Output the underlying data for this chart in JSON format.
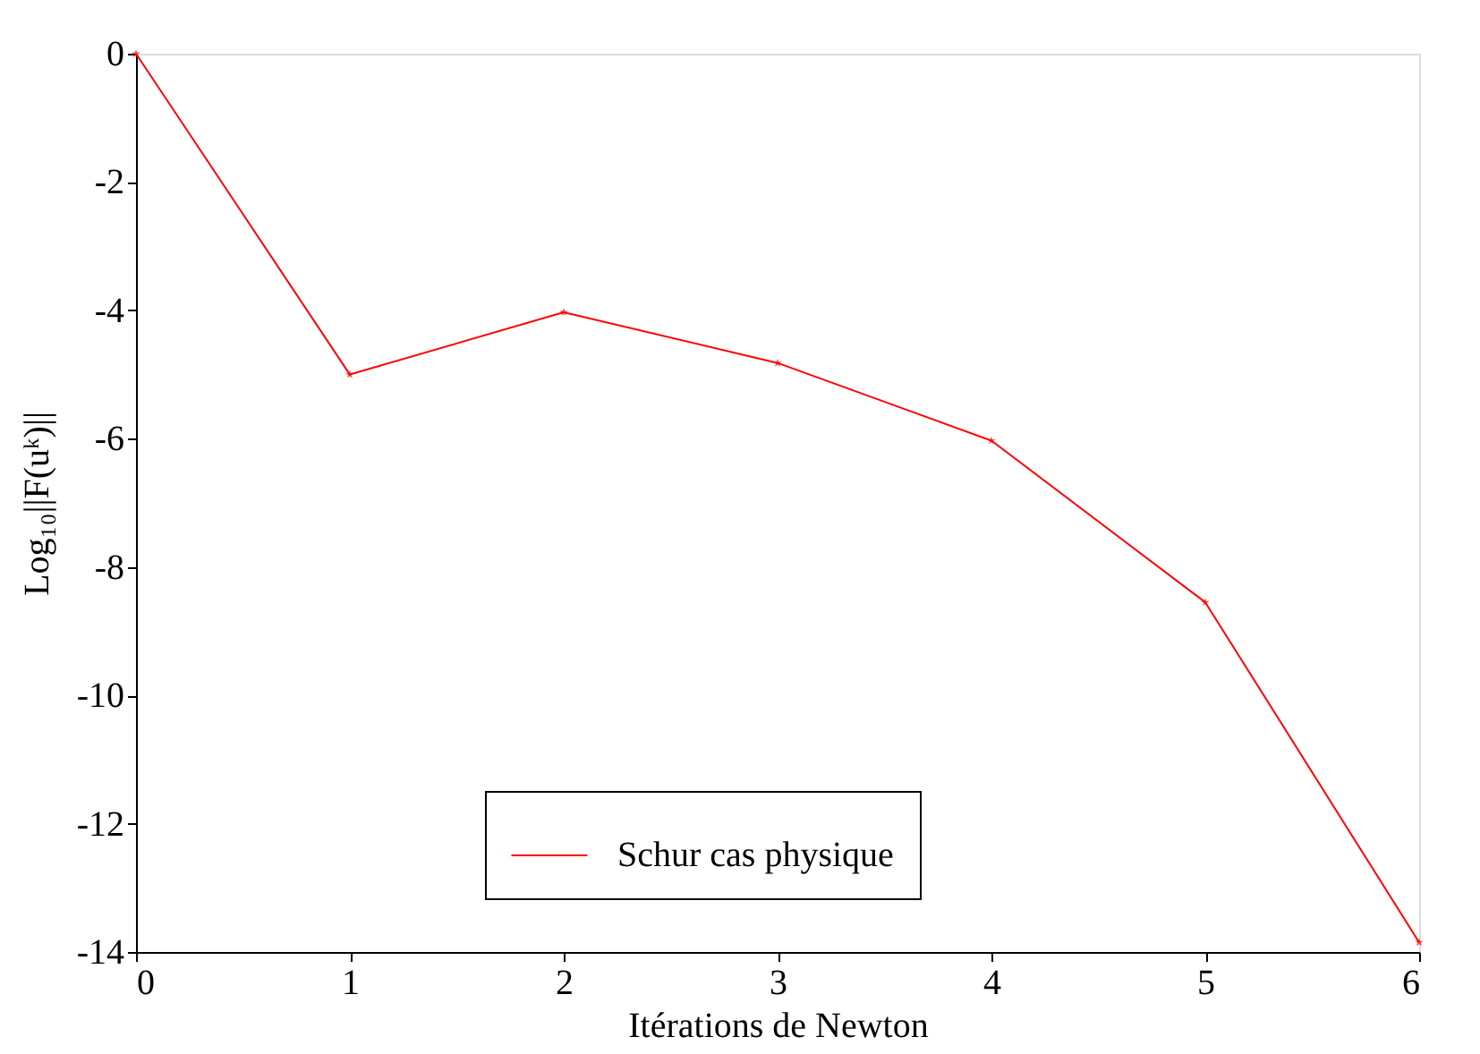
{
  "chart_data": {
    "type": "line",
    "xlabel": "Itérations de Newton",
    "ylabel": "Log₁₀||F(uᵏ)||",
    "x": [
      0,
      1,
      2,
      3,
      4,
      5,
      6
    ],
    "series": [
      {
        "name": "Schur cas physique",
        "color": "#ff0000",
        "values": [
          0,
          -5.0,
          -4.03,
          -4.82,
          -6.03,
          -8.55,
          -13.85
        ]
      }
    ],
    "xlim": [
      0,
      6
    ],
    "xticks": [
      0,
      1,
      2,
      3,
      4,
      5,
      6
    ],
    "ylim": [
      -14,
      0
    ],
    "yticks": [
      -14,
      -12,
      -10,
      -8,
      -6,
      -4,
      -2,
      0
    ],
    "grid": false,
    "legend": "bottom",
    "marker": "star",
    "line_style": "solid"
  }
}
